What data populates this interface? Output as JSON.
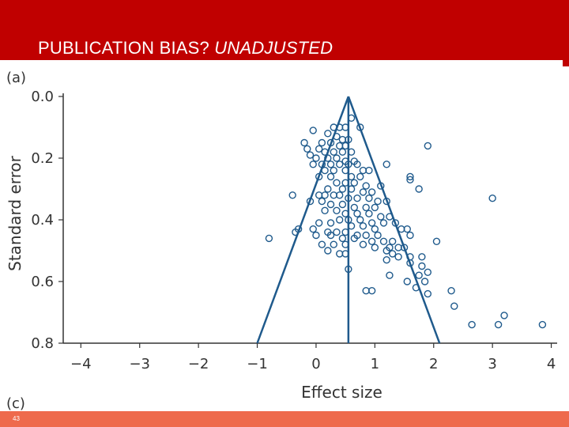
{
  "slide": {
    "title_main": "PUBLICATION BIAS?",
    "title_emph": "UNADJUSTED",
    "page_number": "43",
    "panel_label_top": "(a)",
    "panel_label_bottom": "(c)"
  },
  "colors": {
    "header": "#c00000",
    "footer": "#ee6a4c",
    "plot": "#1f5a8c"
  },
  "chart_data": {
    "type": "scatter",
    "subtype": "funnel-plot",
    "title": "",
    "xlabel": "Effect size",
    "ylabel": "Standard error",
    "xlim": [
      -4.3,
      4.1
    ],
    "ylim": [
      0.0,
      0.8
    ],
    "y_inverted": true,
    "xticks": [
      -4,
      -3,
      -2,
      -1,
      0,
      1,
      2,
      3,
      4
    ],
    "xtick_labels": [
      "−4",
      "−3",
      "−2",
      "−1",
      "0",
      "1",
      "2",
      "3",
      "4"
    ],
    "yticks": [
      0.0,
      0.2,
      0.4,
      0.6,
      0.8
    ],
    "ytick_labels": [
      "0.0",
      "0.2",
      "0.4",
      "0.6",
      "0.8"
    ],
    "grid": false,
    "pooled_estimate": 0.55,
    "funnel": {
      "apex": [
        0.55,
        0.0
      ],
      "left_base": [
        -1.0,
        0.8
      ],
      "right_base": [
        2.1,
        0.8
      ]
    },
    "points": [
      [
        0.6,
        0.07
      ],
      [
        0.75,
        0.1
      ],
      [
        0.3,
        0.1
      ],
      [
        0.4,
        0.1
      ],
      [
        0.5,
        0.1
      ],
      [
        -0.05,
        0.11
      ],
      [
        0.2,
        0.12
      ],
      [
        0.35,
        0.13
      ],
      [
        0.45,
        0.14
      ],
      [
        0.55,
        0.14
      ],
      [
        -0.2,
        0.15
      ],
      [
        0.1,
        0.15
      ],
      [
        0.25,
        0.15
      ],
      [
        0.4,
        0.16
      ],
      [
        0.5,
        0.16
      ],
      [
        1.9,
        0.16
      ],
      [
        -0.15,
        0.17
      ],
      [
        0.05,
        0.17
      ],
      [
        0.15,
        0.18
      ],
      [
        0.3,
        0.18
      ],
      [
        0.45,
        0.18
      ],
      [
        0.6,
        0.18
      ],
      [
        -0.1,
        0.19
      ],
      [
        0.0,
        0.2
      ],
      [
        0.2,
        0.2
      ],
      [
        0.35,
        0.2
      ],
      [
        0.5,
        0.21
      ],
      [
        0.65,
        0.21
      ],
      [
        -0.05,
        0.22
      ],
      [
        0.1,
        0.22
      ],
      [
        0.25,
        0.22
      ],
      [
        0.4,
        0.22
      ],
      [
        0.55,
        0.22
      ],
      [
        0.7,
        0.22
      ],
      [
        1.2,
        0.22
      ],
      [
        0.15,
        0.24
      ],
      [
        0.3,
        0.24
      ],
      [
        0.5,
        0.24
      ],
      [
        0.8,
        0.24
      ],
      [
        0.9,
        0.24
      ],
      [
        0.05,
        0.26
      ],
      [
        0.25,
        0.26
      ],
      [
        0.6,
        0.26
      ],
      [
        0.75,
        0.26
      ],
      [
        1.6,
        0.26
      ],
      [
        1.6,
        0.27
      ],
      [
        0.35,
        0.28
      ],
      [
        0.5,
        0.28
      ],
      [
        0.65,
        0.28
      ],
      [
        0.85,
        0.29
      ],
      [
        1.1,
        0.29
      ],
      [
        1.75,
        0.3
      ],
      [
        0.2,
        0.3
      ],
      [
        0.45,
        0.3
      ],
      [
        0.6,
        0.3
      ],
      [
        0.8,
        0.31
      ],
      [
        0.95,
        0.31
      ],
      [
        -0.4,
        0.32
      ],
      [
        0.05,
        0.32
      ],
      [
        0.15,
        0.32
      ],
      [
        0.3,
        0.32
      ],
      [
        0.4,
        0.32
      ],
      [
        0.55,
        0.33
      ],
      [
        0.7,
        0.33
      ],
      [
        0.9,
        0.33
      ],
      [
        1.05,
        0.34
      ],
      [
        1.2,
        0.34
      ],
      [
        3.0,
        0.33
      ],
      [
        -0.1,
        0.34
      ],
      [
        0.1,
        0.34
      ],
      [
        0.25,
        0.35
      ],
      [
        0.45,
        0.35
      ],
      [
        0.65,
        0.36
      ],
      [
        0.85,
        0.36
      ],
      [
        1.0,
        0.36
      ],
      [
        0.15,
        0.37
      ],
      [
        0.35,
        0.37
      ],
      [
        0.5,
        0.38
      ],
      [
        0.7,
        0.38
      ],
      [
        0.9,
        0.38
      ],
      [
        1.1,
        0.39
      ],
      [
        1.25,
        0.39
      ],
      [
        0.4,
        0.4
      ],
      [
        0.55,
        0.4
      ],
      [
        0.75,
        0.4
      ],
      [
        0.95,
        0.41
      ],
      [
        1.15,
        0.41
      ],
      [
        1.35,
        0.41
      ],
      [
        0.05,
        0.41
      ],
      [
        0.25,
        0.41
      ],
      [
        0.6,
        0.42
      ],
      [
        0.8,
        0.42
      ],
      [
        1.0,
        0.43
      ],
      [
        1.45,
        0.43
      ],
      [
        1.55,
        0.43
      ],
      [
        -0.3,
        0.43
      ],
      [
        -0.05,
        0.43
      ],
      [
        0.2,
        0.44
      ],
      [
        0.35,
        0.44
      ],
      [
        0.5,
        0.44
      ],
      [
        0.7,
        0.45
      ],
      [
        0.85,
        0.45
      ],
      [
        1.05,
        0.45
      ],
      [
        1.6,
        0.45
      ],
      [
        -0.35,
        0.44
      ],
      [
        0.0,
        0.45
      ],
      [
        0.25,
        0.45
      ],
      [
        0.45,
        0.46
      ],
      [
        0.65,
        0.46
      ],
      [
        0.95,
        0.47
      ],
      [
        1.15,
        0.47
      ],
      [
        1.3,
        0.47
      ],
      [
        -0.8,
        0.46
      ],
      [
        0.1,
        0.48
      ],
      [
        0.3,
        0.48
      ],
      [
        0.5,
        0.48
      ],
      [
        0.8,
        0.48
      ],
      [
        1.0,
        0.49
      ],
      [
        1.25,
        0.49
      ],
      [
        1.4,
        0.49
      ],
      [
        1.5,
        0.49
      ],
      [
        1.2,
        0.5
      ],
      [
        2.05,
        0.47
      ],
      [
        0.2,
        0.5
      ],
      [
        0.4,
        0.51
      ],
      [
        0.5,
        0.51
      ],
      [
        1.3,
        0.51
      ],
      [
        1.4,
        0.52
      ],
      [
        1.6,
        0.52
      ],
      [
        1.8,
        0.52
      ],
      [
        1.2,
        0.53
      ],
      [
        1.6,
        0.54
      ],
      [
        1.8,
        0.55
      ],
      [
        0.55,
        0.56
      ],
      [
        1.9,
        0.57
      ],
      [
        1.75,
        0.58
      ],
      [
        1.25,
        0.58
      ],
      [
        1.55,
        0.6
      ],
      [
        1.85,
        0.6
      ],
      [
        1.7,
        0.62
      ],
      [
        0.85,
        0.63
      ],
      [
        0.95,
        0.63
      ],
      [
        2.3,
        0.63
      ],
      [
        1.9,
        0.64
      ],
      [
        2.35,
        0.68
      ],
      [
        3.2,
        0.71
      ],
      [
        2.65,
        0.74
      ],
      [
        3.1,
        0.74
      ],
      [
        3.85,
        0.74
      ]
    ]
  }
}
